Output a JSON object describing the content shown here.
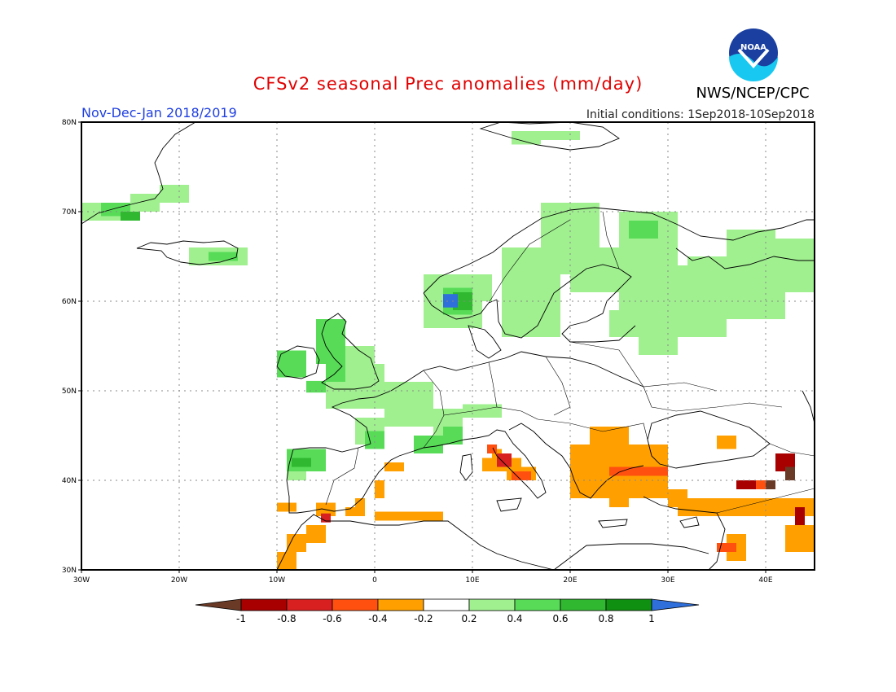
{
  "title": "CFSv2 seasonal Prec anomalies (mm/day)",
  "period": "Nov-Dec-Jan 2018/2019",
  "organization": "NWS/NCEP/CPC",
  "logo_text": "NOAA",
  "initial_conditions": "Initial conditions: 1Sep2018-10Sep2018",
  "map": {
    "lon_range": [
      -30,
      45
    ],
    "lat_range": [
      30,
      80
    ],
    "gridlines": "dotted",
    "lon_ticks": [
      {
        "value": -30,
        "label": "30W"
      },
      {
        "value": -20,
        "label": "20W"
      },
      {
        "value": -10,
        "label": "10W"
      },
      {
        "value": 0,
        "label": "0"
      },
      {
        "value": 10,
        "label": "10E"
      },
      {
        "value": 20,
        "label": "20E"
      },
      {
        "value": 30,
        "label": "30E"
      },
      {
        "value": 40,
        "label": "40E"
      }
    ],
    "lat_ticks": [
      {
        "value": 30,
        "label": "30N"
      },
      {
        "value": 40,
        "label": "40N"
      },
      {
        "value": 50,
        "label": "50N"
      },
      {
        "value": 60,
        "label": "60N"
      },
      {
        "value": 70,
        "label": "70N"
      },
      {
        "value": 80,
        "label": "80N"
      }
    ]
  },
  "colorbar": {
    "labels": [
      "-1",
      "-0.8",
      "-0.6",
      "-0.4",
      "-0.2",
      "0.2",
      "0.4",
      "0.6",
      "0.8",
      "1"
    ],
    "under_color": "#6b3a26",
    "over_color": "#2e6fdc",
    "colors": [
      "#a80000",
      "#d82020",
      "#ff5010",
      "#ffa000",
      "#ffffff",
      "#a0f090",
      "#58dc58",
      "#30b830",
      "#109010"
    ]
  },
  "anomaly_regions": [
    {
      "name": "greenland-east",
      "color": "#a0f090",
      "cells": [
        [
          -30,
          69,
          5,
          2
        ],
        [
          -25,
          70,
          3,
          2
        ],
        [
          -22,
          71,
          3,
          2
        ]
      ]
    },
    {
      "name": "greenland-moderate",
      "color": "#58dc58",
      "cells": [
        [
          -28,
          69.5,
          3,
          1.5
        ]
      ]
    },
    {
      "name": "greenland-strong",
      "color": "#30b830",
      "cells": [
        [
          -26,
          69,
          2,
          1
        ]
      ]
    },
    {
      "name": "iceland",
      "color": "#a0f090",
      "cells": [
        [
          -19,
          64,
          6,
          2
        ]
      ]
    },
    {
      "name": "iceland-moderate",
      "color": "#58dc58",
      "cells": [
        [
          -17,
          64.5,
          3,
          1
        ]
      ]
    },
    {
      "name": "svalbard",
      "color": "#a0f090",
      "cells": [
        [
          14,
          77.5,
          3,
          1.5
        ],
        [
          17,
          78,
          4,
          1
        ]
      ]
    },
    {
      "name": "scandinavia-light",
      "color": "#a0f090",
      "cells": [
        [
          5,
          57,
          6,
          6
        ],
        [
          9,
          60,
          3,
          3
        ],
        [
          13,
          56,
          6,
          10
        ],
        [
          17,
          63,
          6,
          8
        ],
        [
          20,
          61,
          6,
          5
        ],
        [
          25,
          59,
          6,
          11
        ],
        [
          28,
          56,
          8,
          8
        ],
        [
          32,
          58,
          10,
          7
        ],
        [
          36,
          61,
          5,
          7
        ],
        [
          41,
          61,
          4,
          6
        ],
        [
          27,
          54,
          4,
          3
        ],
        [
          24,
          56,
          4,
          3
        ]
      ]
    },
    {
      "name": "scandinavia-moderate",
      "color": "#58dc58",
      "cells": [
        [
          7,
          58.5,
          3,
          3
        ],
        [
          26,
          67,
          3,
          2
        ]
      ]
    },
    {
      "name": "norway-strong",
      "color": "#30b830",
      "cells": [
        [
          8,
          59,
          2,
          2
        ]
      ]
    },
    {
      "name": "norway-over",
      "color": "#2e6fdc",
      "cells": [
        [
          7,
          59.3,
          1.5,
          1.5
        ]
      ]
    },
    {
      "name": "british-isles",
      "color": "#58dc58",
      "cells": [
        [
          -10,
          51.5,
          3,
          3
        ],
        [
          -6,
          53,
          3,
          5
        ],
        [
          -5,
          51,
          2,
          2
        ],
        [
          -7,
          49.8,
          3,
          1.3
        ]
      ]
    },
    {
      "name": "british-isles-light",
      "color": "#a0f090",
      "cells": [
        [
          -3,
          51,
          3,
          4
        ],
        [
          0,
          51,
          1,
          2
        ]
      ]
    },
    {
      "name": "france-benelux",
      "color": "#a0f090",
      "cells": [
        [
          -5,
          48,
          6,
          3
        ],
        [
          1,
          46,
          5,
          5
        ],
        [
          3,
          49.5,
          3,
          1.5
        ],
        [
          6,
          45,
          3,
          3
        ],
        [
          9,
          47,
          4,
          1.5
        ],
        [
          -2,
          44,
          3,
          3
        ]
      ]
    },
    {
      "name": "france-moderate",
      "color": "#58dc58",
      "cells": [
        [
          -1,
          43.5,
          2,
          2
        ],
        [
          4,
          43,
          3,
          2
        ],
        [
          7,
          44,
          2,
          2
        ]
      ]
    },
    {
      "name": "iberia-nw",
      "color": "#58dc58",
      "cells": [
        [
          -9,
          41,
          4,
          2.5
        ]
      ]
    },
    {
      "name": "iberia-nw-strong",
      "color": "#30b830",
      "cells": [
        [
          -8.5,
          41.5,
          2,
          1
        ]
      ]
    },
    {
      "name": "iberia-nw-light",
      "color": "#a0f090",
      "cells": [
        [
          -9,
          40,
          2,
          1
        ]
      ]
    },
    {
      "name": "iberia-south",
      "color": "#ffa000",
      "cells": [
        [
          -10,
          36.5,
          2,
          1
        ],
        [
          -6,
          36,
          2,
          1.5
        ],
        [
          -2,
          37,
          1,
          1
        ],
        [
          0,
          38,
          1,
          2
        ],
        [
          1,
          41,
          2,
          1
        ],
        [
          -3,
          36,
          2,
          1
        ],
        [
          0,
          35.5,
          7,
          1
        ],
        [
          -10,
          30,
          2,
          2
        ],
        [
          -9,
          32,
          2,
          2
        ],
        [
          -7,
          33,
          2,
          2
        ]
      ]
    },
    {
      "name": "morocco-strong",
      "color": "#d82020",
      "cells": [
        [
          -5.5,
          35.3,
          1,
          1
        ]
      ]
    },
    {
      "name": "italy",
      "color": "#ffa000",
      "cells": [
        [
          11,
          41,
          4,
          1.5
        ],
        [
          13.5,
          40,
          3,
          1.5
        ],
        [
          12,
          41.5,
          1,
          2
        ]
      ]
    },
    {
      "name": "italy-strong",
      "color": "#d82020",
      "cells": [
        [
          12.5,
          41.5,
          1.5,
          1.5
        ]
      ]
    },
    {
      "name": "italy-red",
      "color": "#ff5010",
      "cells": [
        [
          14,
          40,
          2,
          1
        ],
        [
          11.5,
          43,
          1,
          1
        ]
      ]
    },
    {
      "name": "balkans",
      "color": "#ffa000",
      "cells": [
        [
          20,
          38,
          10,
          6
        ],
        [
          22,
          44,
          4,
          2
        ],
        [
          24,
          37,
          2,
          1
        ],
        [
          23,
          42,
          3,
          1
        ],
        [
          31,
          36,
          13,
          2
        ],
        [
          30,
          37,
          2,
          2
        ],
        [
          36,
          31,
          2,
          3
        ],
        [
          42,
          32,
          3,
          3
        ],
        [
          40,
          36,
          5,
          2
        ],
        [
          35,
          43.5,
          2,
          1.5
        ],
        [
          37,
          39,
          3,
          1
        ]
      ]
    },
    {
      "name": "balkans-red",
      "color": "#ff5010",
      "cells": [
        [
          24,
          40.5,
          4,
          1
        ],
        [
          28,
          40.5,
          2,
          1
        ],
        [
          38,
          39,
          2,
          1
        ],
        [
          35,
          32,
          2,
          1
        ]
      ]
    },
    {
      "name": "caucasus-dark",
      "color": "#a80000",
      "cells": [
        [
          41,
          41,
          2,
          2
        ],
        [
          43,
          35,
          1,
          2
        ],
        [
          37,
          39,
          2,
          1
        ]
      ]
    },
    {
      "name": "caucasus-brown",
      "color": "#6b3a26",
      "cells": [
        [
          40,
          39,
          1,
          1
        ],
        [
          42,
          40,
          1,
          1.5
        ]
      ]
    }
  ]
}
